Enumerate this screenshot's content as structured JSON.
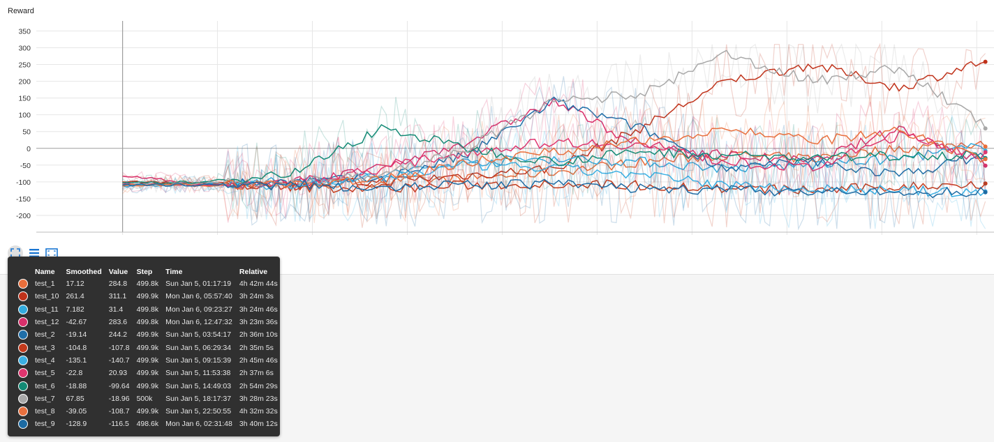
{
  "card": {
    "title": "Reward"
  },
  "toolbar": {
    "expand_icon": "expand-icon",
    "lines_icon": "toggle-log-icon",
    "fit_icon": "fit-domain-icon"
  },
  "tooltip": {
    "headers": [
      "Name",
      "Smoothed",
      "Value",
      "Step",
      "Time",
      "Relative"
    ],
    "rows": [
      {
        "name": "test_1",
        "smoothed": "17.12",
        "value": "284.8",
        "step": "499.8k",
        "time": "Sun Jan 5, 01:17:19",
        "relative": "4h 42m 44s",
        "color": "#e86f3c"
      },
      {
        "name": "test_10",
        "smoothed": "261.4",
        "value": "311.1",
        "step": "499.9k",
        "time": "Mon Jan 6, 05:57:40",
        "relative": "3h 24m 3s",
        "color": "#c0321a"
      },
      {
        "name": "test_11",
        "smoothed": "7.182",
        "value": "31.4",
        "step": "499.8k",
        "time": "Mon Jan 6, 09:23:27",
        "relative": "3h 24m 46s",
        "color": "#33aadd"
      },
      {
        "name": "test_12",
        "smoothed": "-42.67",
        "value": "283.6",
        "step": "499.8k",
        "time": "Mon Jan 6, 12:47:32",
        "relative": "3h 23m 36s",
        "color": "#d9306b"
      },
      {
        "name": "test_2",
        "smoothed": "-19.14",
        "value": "244.2",
        "step": "499.9k",
        "time": "Sun Jan 5, 03:54:17",
        "relative": "2h 36m 10s",
        "color": "#1f6ea8"
      },
      {
        "name": "test_3",
        "smoothed": "-104.8",
        "value": "-107.8",
        "step": "499.9k",
        "time": "Sun Jan 5, 06:29:34",
        "relative": "2h 35m 5s",
        "color": "#c23a1c"
      },
      {
        "name": "test_4",
        "smoothed": "-135.1",
        "value": "-140.7",
        "step": "499.9k",
        "time": "Sun Jan 5, 09:15:39",
        "relative": "2h 45m 46s",
        "color": "#3bb0e3"
      },
      {
        "name": "test_5",
        "smoothed": "-22.8",
        "value": "20.93",
        "step": "499.9k",
        "time": "Sun Jan 5, 11:53:38",
        "relative": "2h 37m 6s",
        "color": "#e0356f"
      },
      {
        "name": "test_6",
        "smoothed": "-18.88",
        "value": "-99.64",
        "step": "499.9k",
        "time": "Sun Jan 5, 14:49:03",
        "relative": "2h 54m 29s",
        "color": "#138a75"
      },
      {
        "name": "test_7",
        "smoothed": "67.85",
        "value": "-18.96",
        "step": "500k",
        "time": "Sun Jan 5, 18:17:37",
        "relative": "3h 28m 23s",
        "color": "#a8a8a8"
      },
      {
        "name": "test_8",
        "smoothed": "-39.05",
        "value": "-108.7",
        "step": "499.9k",
        "time": "Sun Jan 5, 22:50:55",
        "relative": "4h 32m 32s",
        "color": "#e8703e"
      },
      {
        "name": "test_9",
        "smoothed": "-128.9",
        "value": "-116.5",
        "step": "498.6k",
        "time": "Mon Jan 6, 02:31:48",
        "relative": "3h 40m 12s",
        "color": "#1d6ba3"
      }
    ]
  },
  "chart_data": {
    "type": "line",
    "ylim": [
      -250,
      380
    ],
    "xlim": [
      -50000,
      505000
    ],
    "yticks": [
      -200,
      -150,
      -100,
      -50,
      0,
      50,
      100,
      150,
      200,
      250,
      300,
      350
    ],
    "xticks": [
      0,
      55000,
      110000,
      165000,
      220000,
      275000,
      330000,
      385000,
      440000,
      495000
    ],
    "grid": true,
    "series": [
      {
        "name": "test_1",
        "color": "#e86f3c",
        "x": [
          0,
          50000,
          100000,
          150000,
          200000,
          250000,
          300000,
          350000,
          400000,
          450000,
          500000
        ],
        "values": [
          -110,
          -105,
          -110,
          -100,
          -90,
          -70,
          -40,
          -20,
          -30,
          0,
          17
        ]
      },
      {
        "name": "test_10",
        "color": "#c0321a",
        "x": [
          0,
          50000,
          100000,
          150000,
          200000,
          250000,
          300000,
          350000,
          400000,
          450000,
          500000
        ],
        "values": [
          -100,
          -105,
          -110,
          -100,
          -80,
          -60,
          60,
          200,
          250,
          180,
          261
        ]
      },
      {
        "name": "test_11",
        "color": "#33aadd",
        "x": [
          0,
          50000,
          100000,
          150000,
          200000,
          250000,
          300000,
          350000,
          400000,
          450000,
          500000
        ],
        "values": [
          -115,
          -105,
          -100,
          -80,
          -40,
          -30,
          -40,
          -60,
          -50,
          -30,
          7
        ]
      },
      {
        "name": "test_12",
        "color": "#d9306b",
        "x": [
          0,
          50000,
          100000,
          150000,
          200000,
          250000,
          300000,
          350000,
          400000,
          450000,
          500000
        ],
        "values": [
          -80,
          -110,
          -105,
          -60,
          20,
          140,
          10,
          -20,
          -40,
          60,
          -43
        ]
      },
      {
        "name": "test_2",
        "color": "#1f6ea8",
        "x": [
          0,
          50000,
          100000,
          150000,
          200000,
          250000,
          300000,
          350000,
          400000,
          450000,
          500000
        ],
        "values": [
          -110,
          -105,
          -100,
          -90,
          -20,
          140,
          60,
          -60,
          -40,
          -80,
          -19
        ]
      },
      {
        "name": "test_3",
        "color": "#c23a1c",
        "x": [
          0,
          50000,
          100000,
          150000,
          200000,
          250000,
          300000,
          350000,
          400000,
          450000,
          500000
        ],
        "values": [
          -100,
          -105,
          -115,
          -120,
          -110,
          -105,
          -110,
          -120,
          -125,
          -115,
          -105
        ]
      },
      {
        "name": "test_4",
        "color": "#3bb0e3",
        "x": [
          0,
          50000,
          100000,
          150000,
          200000,
          250000,
          300000,
          350000,
          400000,
          450000,
          500000
        ],
        "values": [
          -110,
          -105,
          -110,
          -90,
          -50,
          -60,
          -80,
          -110,
          -120,
          -125,
          -135
        ]
      },
      {
        "name": "test_5",
        "color": "#e0356f",
        "x": [
          0,
          50000,
          100000,
          150000,
          200000,
          250000,
          300000,
          350000,
          400000,
          450000,
          500000
        ],
        "values": [
          -105,
          -110,
          -100,
          -60,
          -10,
          20,
          10,
          -40,
          -60,
          40,
          -23
        ]
      },
      {
        "name": "test_6",
        "color": "#138a75",
        "x": [
          0,
          50000,
          100000,
          150000,
          200000,
          250000,
          300000,
          350000,
          400000,
          450000,
          500000
        ],
        "values": [
          -105,
          -100,
          -70,
          60,
          0,
          -40,
          -10,
          -20,
          -30,
          -20,
          -19
        ]
      },
      {
        "name": "test_7",
        "color": "#a8a8a8",
        "x": [
          0,
          50000,
          100000,
          150000,
          200000,
          250000,
          300000,
          350000,
          400000,
          450000,
          500000
        ],
        "values": [
          -110,
          -105,
          -100,
          -80,
          0,
          140,
          160,
          280,
          200,
          240,
          68
        ]
      },
      {
        "name": "test_8",
        "color": "#e8703e",
        "x": [
          0,
          50000,
          100000,
          150000,
          200000,
          250000,
          300000,
          350000,
          400000,
          450000,
          500000
        ],
        "values": [
          -110,
          -110,
          -105,
          -95,
          -40,
          -10,
          20,
          60,
          20,
          50,
          -39
        ]
      },
      {
        "name": "test_9",
        "color": "#1d6ba3",
        "x": [
          0,
          50000,
          100000,
          150000,
          200000,
          250000,
          300000,
          350000,
          400000,
          450000,
          500000
        ],
        "values": [
          -110,
          -108,
          -110,
          -115,
          -110,
          -105,
          -120,
          -125,
          -130,
          -135,
          -129
        ]
      }
    ]
  }
}
